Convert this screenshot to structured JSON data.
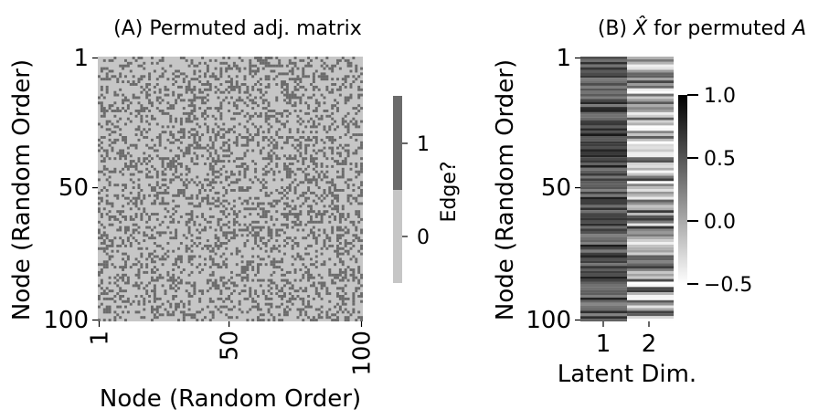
{
  "chart_data": [
    {
      "type": "heatmap",
      "title": "(A) Permuted adj. matrix",
      "xlabel": "Node (Random Order)",
      "ylabel": "Node (Random Order)",
      "x_ticks": [
        "1",
        "50",
        "100"
      ],
      "y_ticks": [
        "1",
        "50",
        "100"
      ],
      "n_rows": 100,
      "n_cols": 100,
      "values_description_note": "",
      "edge_probability": 0.3,
      "colors": {
        "0": "#c6c6c6",
        "1": "#6b6b6b"
      },
      "colorbar": {
        "label": "Edge?",
        "ticks": [
          "0",
          "1"
        ]
      }
    },
    {
      "type": "heatmap",
      "title_prefix": "(B) ",
      "title_math": "X̂",
      "title_suffix": " for permuted ",
      "title_var": "A",
      "xlabel": "Latent Dim.",
      "ylabel": "Node (Random Order)",
      "x_ticks": [
        "1",
        "2"
      ],
      "y_ticks": [
        "1",
        "50",
        "100"
      ],
      "n_rows": 100,
      "n_cols": 2,
      "vmin": -0.5,
      "vmax": 1.0,
      "dim1_range": [
        0.2,
        0.85
      ],
      "dim2_range": [
        -0.5,
        0.7
      ],
      "colorbar": {
        "ticks": [
          "1.0",
          "0.5",
          "0.0",
          "−0.5"
        ],
        "tick_values": [
          1.0,
          0.5,
          0.0,
          -0.5
        ]
      }
    }
  ]
}
